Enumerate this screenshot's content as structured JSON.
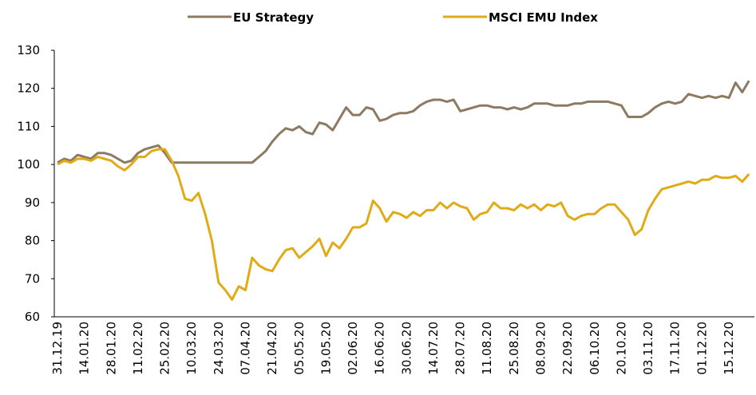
{
  "chart_data": {
    "type": "line",
    "categories": [
      "31.12.19",
      null,
      null,
      null,
      "14.01.20",
      null,
      null,
      null,
      "28.01.20",
      null,
      null,
      null,
      "11.02.20",
      null,
      null,
      null,
      "25.02.20",
      null,
      null,
      null,
      "10.03.20",
      null,
      null,
      null,
      "24.03.20",
      null,
      null,
      null,
      "07.04.20",
      null,
      null,
      null,
      "21.04.20",
      null,
      null,
      null,
      "05.05.20",
      null,
      null,
      null,
      "19.05.20",
      null,
      null,
      null,
      "02.06.20",
      null,
      null,
      null,
      "16.06.20",
      null,
      null,
      null,
      "30.06.20",
      null,
      null,
      null,
      "14.07.20",
      null,
      null,
      null,
      "28.07.20",
      null,
      null,
      null,
      "11.08.20",
      null,
      null,
      null,
      "25.08.20",
      null,
      null,
      null,
      "08.09.20",
      null,
      null,
      null,
      "22.09.20",
      null,
      null,
      null,
      "06.10.20",
      null,
      null,
      null,
      "20.10.20",
      null,
      null,
      null,
      "03.11.20",
      null,
      null,
      null,
      "17.11.20",
      null,
      null,
      null,
      "01.12.20",
      null,
      null,
      null,
      "15.12.20",
      null,
      null,
      null
    ],
    "series": [
      {
        "name": "EU Strategy",
        "color": "#8c7a63",
        "values": [
          100.5,
          101.5,
          101,
          102.5,
          102,
          101.5,
          103,
          103,
          102.5,
          101.5,
          100.5,
          101,
          103,
          104,
          104.5,
          105,
          103,
          100.5,
          100.5,
          100.5,
          100.5,
          100.5,
          100.5,
          100.5,
          100.5,
          100.5,
          100.5,
          100.5,
          100.5,
          100.5,
          102,
          103.5,
          106,
          108,
          109.5,
          109,
          110,
          108.5,
          108,
          111,
          110.5,
          109,
          112,
          115,
          113,
          113,
          115,
          114.5,
          111.5,
          112,
          113,
          113.5,
          113.5,
          114,
          115.5,
          116.5,
          117,
          117,
          116.5,
          117,
          114,
          114.5,
          115,
          115.5,
          115.5,
          115,
          115,
          114.5,
          115,
          114.5,
          115,
          116,
          116,
          116,
          115.5,
          115.5,
          115.5,
          116,
          116,
          116.5,
          116.5,
          116.5,
          116.5,
          116,
          115.5,
          112.5,
          112.5,
          112.5,
          113.5,
          115,
          116,
          116.5,
          116,
          116.5,
          118.5,
          118,
          117.5,
          118,
          117.5,
          118,
          117.5,
          121.5,
          119,
          122
        ]
      },
      {
        "name": "MSCI EMU Index",
        "color": "#e0ab17",
        "values": [
          100,
          101,
          100.5,
          101.5,
          101.5,
          101,
          102,
          101.5,
          101,
          99.5,
          98.5,
          100,
          102,
          102,
          103.5,
          104,
          104,
          101,
          97,
          91,
          90.5,
          92.5,
          87,
          80,
          69,
          67,
          64.5,
          68,
          67,
          75.5,
          73.5,
          72.5,
          72,
          75,
          77.5,
          78,
          75.5,
          77,
          78.5,
          80.5,
          76,
          79.5,
          78,
          80.5,
          83.5,
          83.5,
          84.5,
          90.5,
          88.5,
          85,
          87.5,
          87,
          86,
          87.5,
          86.5,
          88,
          88,
          90,
          88.5,
          90,
          89,
          88.5,
          85.5,
          87,
          87.5,
          90,
          88.5,
          88.5,
          88,
          89.5,
          88.5,
          89.5,
          88,
          89.5,
          89,
          90,
          86.5,
          85.5,
          86.5,
          87,
          87,
          88.5,
          89.5,
          89.5,
          87.5,
          85.5,
          81.5,
          83,
          88,
          91,
          93.5,
          94,
          94.5,
          95,
          95.5,
          95,
          96,
          96,
          97,
          96.5,
          96.5,
          97,
          95.5,
          97.5
        ]
      }
    ],
    "ylim": [
      60,
      130
    ],
    "yticks": [
      60,
      70,
      80,
      90,
      100,
      110,
      120,
      130
    ],
    "grid": false
  }
}
